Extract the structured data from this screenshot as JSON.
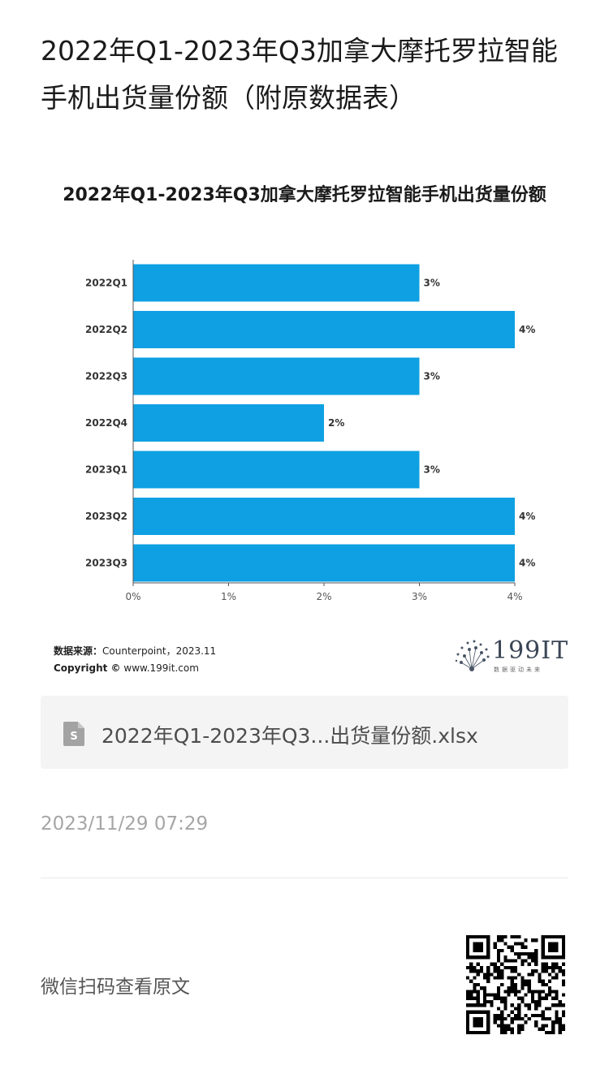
{
  "article": {
    "title": "2022年Q1-2023年Q3加拿大摩托罗拉智能手机出货量份额（附原数据表）",
    "timestamp": "2023/11/29 07:29"
  },
  "chart_data": {
    "type": "bar",
    "orientation": "horizontal",
    "title": "2022年Q1-2023年Q3加拿大摩托罗拉智能手机出货量份额",
    "categories": [
      "2022Q1",
      "2022Q2",
      "2022Q3",
      "2022Q4",
      "2023Q1",
      "2023Q2",
      "2023Q3"
    ],
    "values": [
      3,
      4,
      3,
      2,
      3,
      4,
      4
    ],
    "data_labels": [
      "3%",
      "4%",
      "3%",
      "2%",
      "3%",
      "4%",
      "4%"
    ],
    "x_ticks": [
      "0%",
      "1%",
      "2%",
      "3%",
      "4%"
    ],
    "xlim": [
      0,
      4
    ],
    "unit": "%",
    "bar_color": "#0ea0e3",
    "grid": false
  },
  "source": {
    "label": "数据来源：",
    "value": "Counterpoint，2023.11",
    "copyright_label": "Copyright ©",
    "copyright_value": "www.199it.com"
  },
  "brand": {
    "name": "199IT",
    "tagline": "数据驱动未来"
  },
  "attachment": {
    "file_name": "2022年Q1-2023年Q3...出货量份额.xlsx",
    "icon": "spreadsheet-file-icon"
  },
  "footer": {
    "scan_text": "微信扫码查看原文",
    "qr_icon": "qr-code-icon"
  }
}
